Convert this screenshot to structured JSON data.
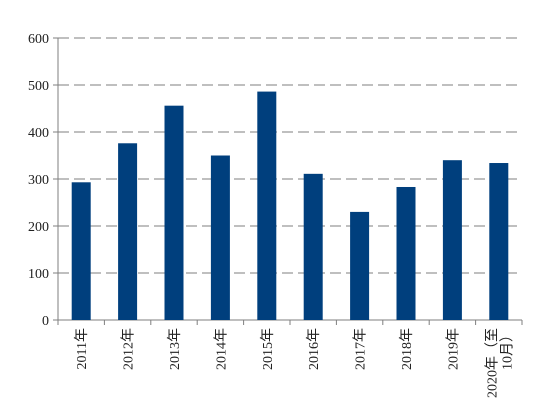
{
  "chart_data": {
    "type": "bar",
    "categories": [
      "2011年",
      "2012年",
      "2013年",
      "2014年",
      "2015年",
      "2016年",
      "2017年",
      "2018年",
      "2019年",
      "2020年（至10月）"
    ],
    "category_lines": [
      [
        "2011年"
      ],
      [
        "2012年"
      ],
      [
        "2013年"
      ],
      [
        "2014年"
      ],
      [
        "2015年"
      ],
      [
        "2016年"
      ],
      [
        "2017年"
      ],
      [
        "2018年"
      ],
      [
        "2019年"
      ],
      [
        "2020年（至",
        "10月）"
      ]
    ],
    "values": [
      293,
      376,
      456,
      350,
      486,
      311,
      230,
      283,
      340,
      334
    ],
    "ylim": [
      0,
      600
    ],
    "yticks": [
      0,
      100,
      200,
      300,
      400,
      500,
      600
    ],
    "grid": true,
    "grid_style": "dashed",
    "bar_color": "#003F7D",
    "grid_color": "#7F7F7F",
    "axis_color": "#7F7F7F",
    "title": "",
    "xlabel": "",
    "ylabel": ""
  }
}
